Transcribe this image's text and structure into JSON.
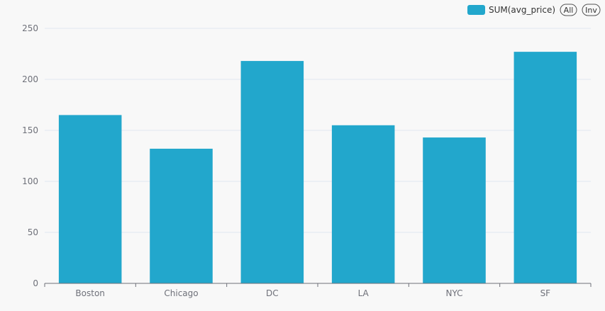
{
  "chart_data": {
    "type": "bar",
    "categories": [
      "Boston",
      "Chicago",
      "DC",
      "LA",
      "NYC",
      "SF"
    ],
    "series": [
      {
        "name": "SUM(avg_price)",
        "values": [
          165,
          132,
          218,
          155,
          143,
          227
        ]
      }
    ],
    "ylim": [
      0,
      250
    ],
    "y_ticks": [
      0,
      50,
      100,
      150,
      200,
      250
    ],
    "grid": true,
    "legend_placement": "top-right",
    "bar_color": "#22a7cc"
  },
  "legend": {
    "label": "SUM(avg_price)",
    "all_label": "All",
    "inv_label": "Inv"
  }
}
